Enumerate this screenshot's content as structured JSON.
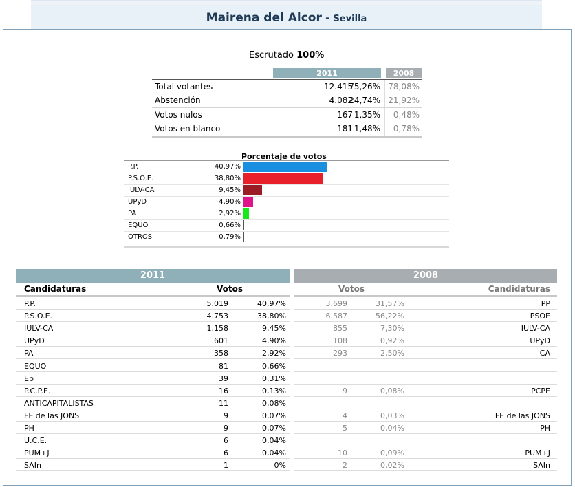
{
  "header": {
    "city": "Mairena del Alcor",
    "separator": " - ",
    "province": "Sevilla"
  },
  "escrutado": {
    "label": "Escrutado",
    "value": "100%"
  },
  "summary": {
    "head_2011": "2011",
    "head_2008": "2008",
    "rows": [
      {
        "label": "Total votantes",
        "num": "12.415",
        "pct": "75,26%",
        "old": "78,08%"
      },
      {
        "label": "Abstención",
        "num": "4.082",
        "pct": "24,74%",
        "old": "21,92%"
      },
      {
        "label": "Votos nulos",
        "num": "167",
        "pct": "1,35%",
        "old": "0,48%"
      },
      {
        "label": "Votos en blanco",
        "num": "181",
        "pct": "1,48%",
        "old": "0,78%"
      }
    ]
  },
  "bar_chart": {
    "title": "Porcentaje de votos",
    "max": 40.97,
    "rows": [
      {
        "label": "P.P.",
        "pct_text": "40,97%",
        "value": 40.97,
        "color": "#1a8fe0"
      },
      {
        "label": "P.S.O.E.",
        "pct_text": "38,80%",
        "value": 38.8,
        "color": "#e8202a"
      },
      {
        "label": "IULV-CA",
        "pct_text": "9,45%",
        "value": 9.45,
        "color": "#9a1c24"
      },
      {
        "label": "UPyD",
        "pct_text": "4,90%",
        "value": 4.9,
        "color": "#e0148a"
      },
      {
        "label": "PA",
        "pct_text": "2,92%",
        "value": 2.92,
        "color": "#18e818"
      },
      {
        "label": "EQUO",
        "pct_text": "0,66%",
        "value": 0.66,
        "color": "#555555"
      },
      {
        "label": "OTROS",
        "pct_text": "0,79%",
        "value": 0.79,
        "color": "#555555"
      }
    ]
  },
  "detail": {
    "head_2011": "2011",
    "head_2008": "2008",
    "col_candidaturas": "Candidaturas",
    "col_votos": "Votos",
    "col_votos_2008": "Votos",
    "col_candidaturas_2008": "Candidaturas",
    "rows": [
      {
        "name": "P.P.",
        "votes": "5.019",
        "pct": "40,97%",
        "v08": "3.699",
        "p08": "31,57%",
        "n08": "PP"
      },
      {
        "name": "P.S.O.E.",
        "votes": "4.753",
        "pct": "38,80%",
        "v08": "6.587",
        "p08": "56,22%",
        "n08": "PSOE"
      },
      {
        "name": "IULV-CA",
        "votes": "1.158",
        "pct": "9,45%",
        "v08": "855",
        "p08": "7,30%",
        "n08": "IULV-CA"
      },
      {
        "name": "UPyD",
        "votes": "601",
        "pct": "4,90%",
        "v08": "108",
        "p08": "0,92%",
        "n08": "UPyD"
      },
      {
        "name": "PA",
        "votes": "358",
        "pct": "2,92%",
        "v08": "293",
        "p08": "2,50%",
        "n08": "CA"
      },
      {
        "name": "EQUO",
        "votes": "81",
        "pct": "0,66%",
        "v08": "",
        "p08": "",
        "n08": ""
      },
      {
        "name": "Eb",
        "votes": "39",
        "pct": "0,31%",
        "v08": "",
        "p08": "",
        "n08": ""
      },
      {
        "name": "P.C.P.E.",
        "votes": "16",
        "pct": "0,13%",
        "v08": "9",
        "p08": "0,08%",
        "n08": "PCPE"
      },
      {
        "name": "ANTICAPITALISTAS",
        "votes": "11",
        "pct": "0,08%",
        "v08": "",
        "p08": "",
        "n08": ""
      },
      {
        "name": "FE de las JONS",
        "votes": "9",
        "pct": "0,07%",
        "v08": "4",
        "p08": "0,03%",
        "n08": "FE de las JONS"
      },
      {
        "name": "PH",
        "votes": "9",
        "pct": "0,07%",
        "v08": "5",
        "p08": "0,04%",
        "n08": "PH"
      },
      {
        "name": "U.C.E.",
        "votes": "6",
        "pct": "0,04%",
        "v08": "",
        "p08": "",
        "n08": ""
      },
      {
        "name": "PUM+J",
        "votes": "6",
        "pct": "0,04%",
        "v08": "10",
        "p08": "0,09%",
        "n08": "PUM+J"
      },
      {
        "name": "SAIn",
        "votes": "1",
        "pct": "0%",
        "v08": "2",
        "p08": "0,02%",
        "n08": "SAIn"
      }
    ]
  }
}
